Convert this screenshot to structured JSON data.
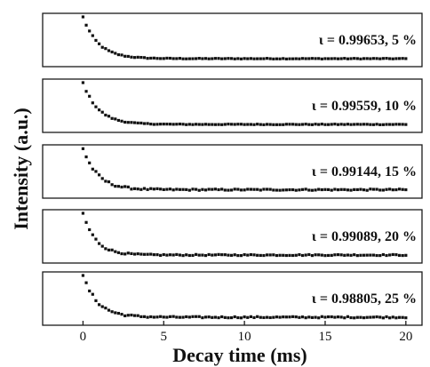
{
  "chart_data": {
    "type": "scatter",
    "layout": "stacked-panels",
    "xlabel": "Decay time (ms)",
    "ylabel": "Intensity (a.u.)",
    "xlim": [
      -2.5,
      21
    ],
    "xticks": [
      0,
      5,
      10,
      15,
      20
    ],
    "xtick_labels": [
      "0",
      "5",
      "10",
      "15",
      "20"
    ],
    "y_ticks_shown": false,
    "marker_color": "#111111",
    "decay_shape": "exponential",
    "sample_interval_ms": 0.2,
    "panels": [
      {
        "label": "ι = 0.99653, 5 %",
        "x_start": 0,
        "x_end": 20,
        "tau_ms": 0.95,
        "baseline": 0.06,
        "noise": 0.015
      },
      {
        "label": "ι = 0.99559, 10 %",
        "x_start": 0,
        "x_end": 20,
        "tau_ms": 0.95,
        "baseline": 0.06,
        "noise": 0.015
      },
      {
        "label": "ι = 0.99144, 15 %",
        "x_start": 0,
        "x_end": 20,
        "tau_ms": 0.9,
        "baseline": 0.07,
        "noise": 0.03
      },
      {
        "label": "ι  = 0.99089, 20 %",
        "x_start": 0,
        "x_end": 20,
        "tau_ms": 0.8,
        "baseline": 0.06,
        "noise": 0.025
      },
      {
        "label": "ι = 0.98805, 25 %",
        "x_start": 0,
        "x_end": 20,
        "tau_ms": 0.9,
        "baseline": 0.06,
        "noise": 0.03
      }
    ]
  }
}
